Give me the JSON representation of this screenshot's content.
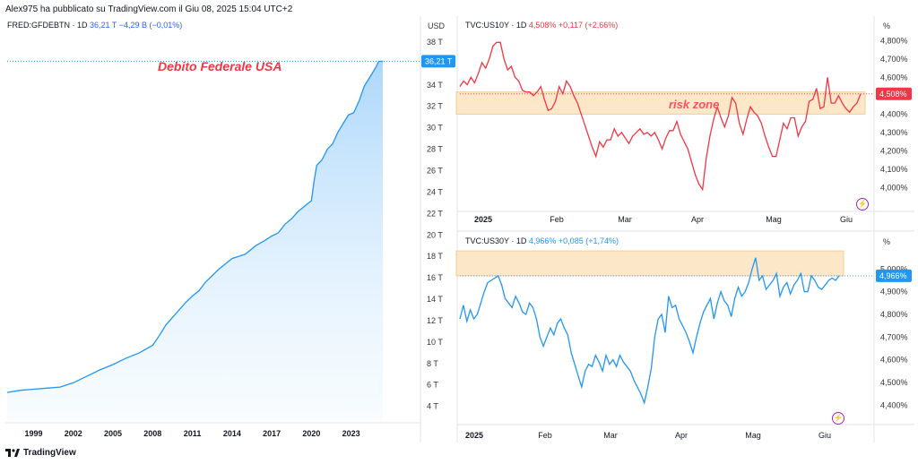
{
  "header": {
    "publisher": "Alex975 ha pubblicato su TradingView.com il Giu 08, 2025 15:04 UTC+2"
  },
  "brand": {
    "name": "TradingView"
  },
  "colors": {
    "debt_line": "#2196f3",
    "us10y_line": "#f23645",
    "us30y_line": "#2196f3",
    "risk_zone": "#fde3c0",
    "annotation": "#f23645"
  },
  "charts": {
    "debt": {
      "legend": {
        "symbol": "FRED:GFDEBTN · 1D",
        "price": "36,21 T",
        "change": "−4,29 B (−0,01%)"
      },
      "currency": "USD",
      "annotation": "Debito Federale USA",
      "last_label": "36,21 T"
    },
    "us10y": {
      "legend": {
        "symbol": "TVC:US10Y · 1D",
        "price": "4,508%",
        "change": "+0,117 (+2,66%)"
      },
      "unit": "%",
      "annotation": "risk zone",
      "last_label": "4,508%"
    },
    "us30y": {
      "legend": {
        "symbol": "TVC:US30Y · 1D",
        "price": "4,966%",
        "change": "+0,085 (+1,74%)"
      },
      "unit": "%",
      "last_label": "4,966%"
    }
  },
  "chart_data": [
    {
      "type": "area",
      "title": "Debito Federale USA",
      "ylabel": "USD",
      "x_ticks": [
        "1999",
        "2002",
        "2005",
        "2008",
        "2011",
        "2014",
        "2017",
        "2020",
        "2023"
      ],
      "y_ticks": [
        "4 T",
        "6 T",
        "8 T",
        "10 T",
        "12 T",
        "14 T",
        "16 T",
        "18 T",
        "20 T",
        "22 T",
        "24 T",
        "26 T",
        "28 T",
        "30 T",
        "32 T",
        "34 T",
        "36 T",
        "38 T"
      ],
      "ylim": [
        2.8,
        38.5
      ],
      "xlim": [
        1997.0,
        2025.6
      ],
      "x": [
        1997.0,
        1998.0,
        1999.0,
        2000.0,
        2001.0,
        2002.0,
        2003.0,
        2004.0,
        2005.0,
        2006.0,
        2007.0,
        2008.0,
        2008.5,
        2009.0,
        2009.5,
        2010.0,
        2010.5,
        2011.0,
        2011.5,
        2012.0,
        2013.0,
        2014.0,
        2015.0,
        2015.8,
        2016.5,
        2017.0,
        2017.5,
        2018.0,
        2018.5,
        2019.0,
        2019.5,
        2020.0,
        2020.2,
        2020.4,
        2020.8,
        2021.2,
        2021.6,
        2022.0,
        2022.4,
        2022.8,
        2023.2,
        2023.6,
        2024.0,
        2024.4,
        2024.8,
        2025.1,
        2025.4
      ],
      "values": [
        5.3,
        5.5,
        5.6,
        5.7,
        5.8,
        6.2,
        6.8,
        7.4,
        7.9,
        8.5,
        9.0,
        9.7,
        10.6,
        11.6,
        12.3,
        13.0,
        13.7,
        14.3,
        14.8,
        15.6,
        16.8,
        17.8,
        18.2,
        19.0,
        19.5,
        19.9,
        20.2,
        21.0,
        21.5,
        22.2,
        22.7,
        23.2,
        25.0,
        26.5,
        27.0,
        28.0,
        28.5,
        29.6,
        30.4,
        31.2,
        31.4,
        32.5,
        33.9,
        34.7,
        35.5,
        36.2,
        36.21
      ],
      "grid": false,
      "legend": "top-left"
    },
    {
      "type": "line",
      "title": "TVC:US10Y · 1D",
      "ylabel": "%",
      "x_ticks": [
        "2025",
        "Feb",
        "Mar",
        "Apr",
        "Mag",
        "Giu"
      ],
      "y_ticks": [
        "4,000%",
        "4,100%",
        "4,200%",
        "4,300%",
        "4,400%",
        "4,500%",
        "4,600%",
        "4,700%",
        "4,800%"
      ],
      "ylim": [
        3.9,
        4.85
      ],
      "x": [
        1,
        2,
        3,
        4,
        5,
        6,
        7,
        8,
        9,
        10,
        11,
        12,
        13,
        14,
        15,
        16,
        17,
        18,
        19,
        20,
        21,
        22,
        23,
        24,
        25,
        26,
        27,
        28,
        29,
        30,
        31,
        32,
        33,
        34,
        35,
        36,
        37,
        38,
        39,
        40,
        41,
        42,
        43,
        44,
        45,
        46,
        47,
        48,
        49,
        50,
        51,
        52,
        53,
        54,
        55,
        56,
        57,
        58,
        59,
        60,
        61,
        62,
        63,
        64,
        65,
        66,
        67,
        68,
        69,
        70,
        71,
        72,
        73,
        74,
        75,
        76,
        77,
        78,
        79,
        80,
        81,
        82,
        83,
        84,
        85,
        86,
        87,
        88,
        89,
        90,
        91,
        92,
        93,
        94,
        95,
        96,
        97,
        98,
        99,
        100,
        101,
        102,
        103,
        104,
        105,
        106,
        107,
        108,
        109,
        110
      ],
      "values": [
        4.55,
        4.58,
        4.56,
        4.6,
        4.57,
        4.62,
        4.68,
        4.65,
        4.7,
        4.77,
        4.79,
        4.79,
        4.7,
        4.64,
        4.66,
        4.6,
        4.58,
        4.53,
        4.52,
        4.52,
        4.5,
        4.52,
        4.55,
        4.48,
        4.42,
        4.43,
        4.47,
        4.55,
        4.51,
        4.58,
        4.55,
        4.5,
        4.46,
        4.4,
        4.34,
        4.28,
        4.22,
        4.17,
        4.25,
        4.22,
        4.26,
        4.26,
        4.32,
        4.28,
        4.3,
        4.27,
        4.24,
        4.28,
        4.3,
        4.32,
        4.29,
        4.3,
        4.28,
        4.3,
        4.26,
        4.21,
        4.27,
        4.31,
        4.31,
        4.36,
        4.29,
        4.25,
        4.21,
        4.14,
        4.07,
        4.02,
        3.99,
        4.16,
        4.28,
        4.37,
        4.44,
        4.38,
        4.33,
        4.39,
        4.49,
        4.46,
        4.35,
        4.29,
        4.37,
        4.44,
        4.41,
        4.39,
        4.35,
        4.28,
        4.22,
        4.17,
        4.17,
        4.26,
        4.35,
        4.32,
        4.38,
        4.38,
        4.28,
        4.33,
        4.36,
        4.47,
        4.48,
        4.54,
        4.43,
        4.44,
        4.6,
        4.46,
        4.46,
        4.5,
        4.46,
        4.43,
        4.41,
        4.44,
        4.46,
        4.51
      ],
      "risk_zone": [
        4.4,
        4.52
      ],
      "grid": false,
      "legend": "top-left"
    },
    {
      "type": "line",
      "title": "TVC:US30Y · 1D",
      "ylabel": "%",
      "x_ticks": [
        "2025",
        "Feb",
        "Mar",
        "Apr",
        "Mag",
        "Giu"
      ],
      "y_ticks": [
        "4,400%",
        "4,500%",
        "4,600%",
        "4,700%",
        "4,800%",
        "4,900%",
        "5,000%"
      ],
      "ylim": [
        4.33,
        5.1
      ],
      "x": [
        1,
        2,
        3,
        4,
        5,
        6,
        7,
        8,
        9,
        10,
        11,
        12,
        13,
        14,
        15,
        16,
        17,
        18,
        19,
        20,
        21,
        22,
        23,
        24,
        25,
        26,
        27,
        28,
        29,
        30,
        31,
        32,
        33,
        34,
        35,
        36,
        37,
        38,
        39,
        40,
        41,
        42,
        43,
        44,
        45,
        46,
        47,
        48,
        49,
        50,
        51,
        52,
        53,
        54,
        55,
        56,
        57,
        58,
        59,
        60,
        61,
        62,
        63,
        64,
        65,
        66,
        67,
        68,
        69,
        70,
        71,
        72,
        73,
        74,
        75,
        76,
        77,
        78,
        79,
        80,
        81,
        82,
        83,
        84,
        85,
        86,
        87,
        88,
        89,
        90,
        91,
        92,
        93,
        94,
        95,
        96,
        97,
        98,
        99,
        100,
        101,
        102,
        103,
        104,
        105,
        106,
        107,
        108,
        109,
        110
      ],
      "values": [
        4.78,
        4.84,
        4.77,
        4.82,
        4.78,
        4.8,
        4.85,
        4.9,
        4.94,
        4.95,
        4.96,
        4.97,
        4.93,
        4.87,
        4.85,
        4.83,
        4.88,
        4.85,
        4.81,
        4.8,
        4.85,
        4.83,
        4.78,
        4.7,
        4.66,
        4.7,
        4.74,
        4.71,
        4.76,
        4.78,
        4.74,
        4.71,
        4.63,
        4.58,
        4.53,
        4.48,
        4.55,
        4.58,
        4.57,
        4.62,
        4.59,
        4.55,
        4.62,
        4.58,
        4.6,
        4.57,
        4.62,
        4.59,
        4.57,
        4.55,
        4.51,
        4.48,
        4.45,
        4.41,
        4.48,
        4.56,
        4.7,
        4.78,
        4.8,
        4.72,
        4.88,
        4.83,
        4.84,
        4.78,
        4.75,
        4.72,
        4.68,
        4.63,
        4.7,
        4.76,
        4.81,
        4.84,
        4.87,
        4.78,
        4.85,
        4.9,
        4.86,
        4.84,
        4.79,
        4.87,
        4.92,
        4.88,
        4.9,
        4.94,
        5.0,
        5.05,
        4.95,
        4.97,
        4.91,
        4.93,
        4.95,
        4.98,
        4.88,
        4.92,
        4.94,
        4.89,
        4.93,
        4.95,
        4.98,
        4.9,
        4.9,
        4.97,
        4.95,
        4.92,
        4.91,
        4.93,
        4.95,
        4.96,
        4.95,
        4.97
      ],
      "risk_zone": [
        4.97,
        5.08
      ],
      "grid": false,
      "legend": "top-left"
    }
  ]
}
